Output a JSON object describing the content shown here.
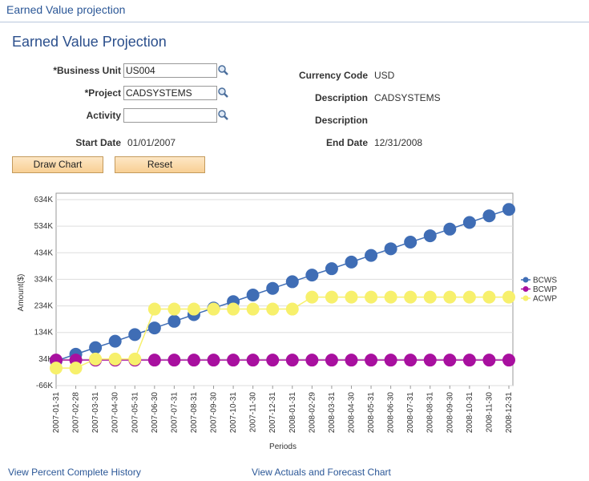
{
  "header": {
    "title": "Earned Value projection"
  },
  "page_title": "Earned Value Projection",
  "form": {
    "business_unit": {
      "label": "*Business Unit",
      "value": "US004"
    },
    "project": {
      "label": "*Project",
      "value": "CADSYSTEMS"
    },
    "activity": {
      "label": "Activity"
    },
    "start_date": {
      "label": "Start Date",
      "value": "01/01/2007"
    },
    "currency_code": {
      "label": "Currency Code",
      "value": "USD"
    },
    "description_1": {
      "label": "Description",
      "value": "CADSYSTEMS"
    },
    "description_2": {
      "label": "Description"
    },
    "end_date": {
      "label": "End Date",
      "value": "12/31/2008"
    }
  },
  "buttons": [
    "Draw Chart",
    "Reset"
  ],
  "links": [
    "View Percent Complete History",
    "View Actuals and Forecast Chart"
  ],
  "chart_data": {
    "type": "line",
    "x_label": "Periods",
    "y_label": "Amount($)",
    "categories": [
      "2007-01-31",
      "2007-02-28",
      "2007-03-31",
      "2007-04-30",
      "2007-05-31",
      "2007-06-30",
      "2007-07-31",
      "2007-08-31",
      "2007-09-30",
      "2007-10-31",
      "2007-11-30",
      "2007-12-31",
      "2008-01-31",
      "2008-02-29",
      "2008-03-31",
      "2008-04-30",
      "2008-05-31",
      "2008-06-30",
      "2008-07-31",
      "2008-08-31",
      "2008-09-30",
      "2008-10-31",
      "2008-11-30",
      "2008-12-31"
    ],
    "series": [
      {
        "name": "BCWS",
        "color": "#3f6db5",
        "values": [
          27000,
          52000,
          77000,
          101000,
          126000,
          151000,
          176000,
          201000,
          226000,
          250000,
          275000,
          300000,
          325000,
          350000,
          374000,
          399000,
          424000,
          449000,
          474000,
          498000,
          523000,
          548000,
          573000,
          597000
        ]
      },
      {
        "name": "BCWP",
        "color": "#a8109f",
        "values": [
          30000,
          30000,
          30000,
          30000,
          30000,
          30000,
          30000,
          30000,
          30000,
          30000,
          30000,
          30000,
          30000,
          30000,
          30000,
          30000,
          30000,
          30000,
          30000,
          30000,
          30000,
          30000,
          30000,
          30000
        ]
      },
      {
        "name": "ACWP",
        "color": "#f7f06c",
        "values": [
          0,
          0,
          34000,
          34000,
          34000,
          222000,
          222000,
          222000,
          222000,
          222000,
          222000,
          222000,
          222000,
          267000,
          267000,
          267000,
          267000,
          267000,
          267000,
          267000,
          267000,
          267000,
          267000,
          267000
        ]
      }
    ],
    "ylim": [
      -66000,
      634000
    ],
    "yticks": [
      {
        "value": -66000,
        "label": "-66K"
      },
      {
        "value": 34000,
        "label": "34K"
      },
      {
        "value": 134000,
        "label": "134K"
      },
      {
        "value": 234000,
        "label": "234K"
      },
      {
        "value": 334000,
        "label": "334K"
      },
      {
        "value": 434000,
        "label": "434K"
      },
      {
        "value": 534000,
        "label": "534K"
      },
      {
        "value": 634000,
        "label": "634K"
      }
    ],
    "grid": true,
    "legend": "right"
  }
}
